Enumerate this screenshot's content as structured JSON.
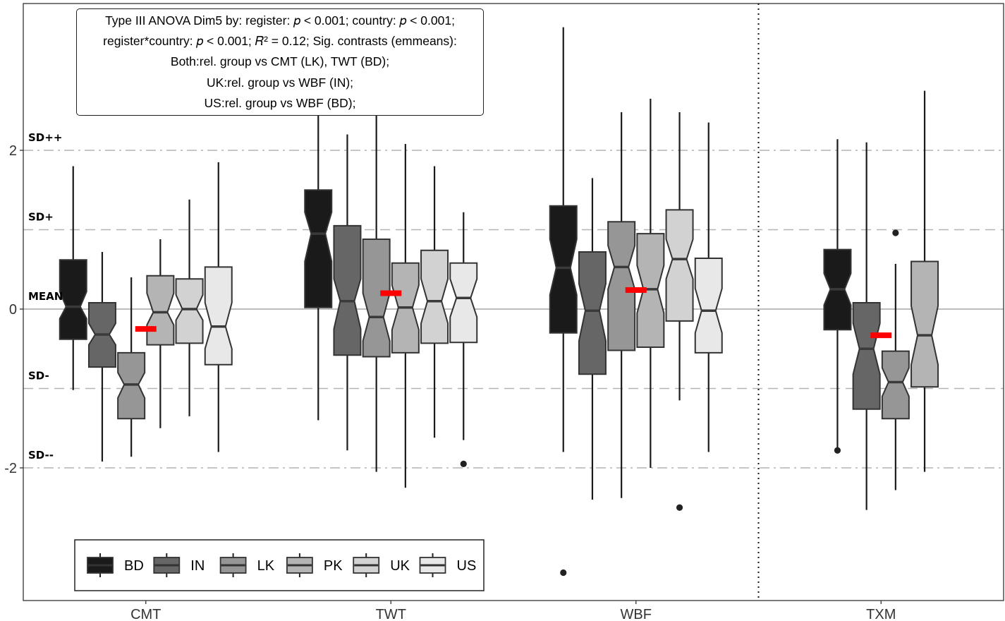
{
  "annotation": {
    "lines": [
      "Type III ANOVA Dim5 by: register: 𝑝 < 0.001; country: 𝑝 < 0.001;",
      "register*country: 𝑝 < 0.001; 𝑅² = 0.12; Sig. contrasts (emmeans):",
      "Both:rel. group vs CMT (LK), TWT (BD);",
      "UK:rel. group vs WBF (IN);",
      "US:rel. group vs WBF (BD);"
    ]
  },
  "chart_data": {
    "type": "boxplot",
    "notched": true,
    "categories": [
      "CMT",
      "TWT",
      "WBF",
      "TXM"
    ],
    "ylim": [
      -3.6,
      3.8
    ],
    "yticks": [
      -2,
      0,
      2
    ],
    "ytick_labels": [
      "-2",
      "0",
      "2"
    ],
    "reference_lines": [
      {
        "label": "SD++",
        "y": 2,
        "style": "dashdot"
      },
      {
        "label": "SD+",
        "y": 1,
        "style": "dashed"
      },
      {
        "label": "MEAN",
        "y": 0,
        "style": "solid"
      },
      {
        "label": "SD-",
        "y": -1,
        "style": "dashed"
      },
      {
        "label": "SD--",
        "y": -2,
        "style": "dashdot"
      }
    ],
    "separator_after_category": "WBF",
    "legend": {
      "position": "bottom-left"
    },
    "series": [
      {
        "name": "BD",
        "color": "#1a1a1a"
      },
      {
        "name": "IN",
        "color": "#666666"
      },
      {
        "name": "LK",
        "color": "#969696"
      },
      {
        "name": "PK",
        "color": "#b4b4b4"
      },
      {
        "name": "UK",
        "color": "#d2d2d2"
      },
      {
        "name": "US",
        "color": "#e8e8e8"
      }
    ],
    "groups": [
      {
        "category": "CMT",
        "mean": -0.25,
        "boxes": [
          {
            "series": "BD",
            "whisker_low": -1.02,
            "q1": -0.38,
            "median": 0.03,
            "q3": 0.62,
            "whisker_high": 1.8,
            "notch_low": -0.12,
            "notch_high": 0.22,
            "outliers": []
          },
          {
            "series": "IN",
            "whisker_low": -1.92,
            "q1": -0.73,
            "median": -0.32,
            "q3": 0.08,
            "whisker_high": 0.72,
            "notch_low": -0.45,
            "notch_high": -0.18,
            "outliers": []
          },
          {
            "series": "LK",
            "whisker_low": -1.86,
            "q1": -1.38,
            "median": -0.95,
            "q3": -0.55,
            "whisker_high": 0.4,
            "notch_low": -1.12,
            "notch_high": -0.8,
            "outliers": []
          },
          {
            "series": "PK",
            "whisker_low": -1.5,
            "q1": -0.45,
            "median": -0.04,
            "q3": 0.42,
            "whisker_high": 0.88,
            "notch_low": -0.2,
            "notch_high": 0.2,
            "outliers": []
          },
          {
            "series": "UK",
            "whisker_low": -1.35,
            "q1": -0.43,
            "median": 0.0,
            "q3": 0.38,
            "whisker_high": 1.38,
            "notch_low": -0.14,
            "notch_high": 0.18,
            "outliers": []
          },
          {
            "series": "US",
            "whisker_low": -1.8,
            "q1": -0.7,
            "median": -0.22,
            "q3": 0.53,
            "whisker_high": 1.85,
            "notch_low": -0.5,
            "notch_high": 0.08,
            "outliers": []
          }
        ]
      },
      {
        "category": "TWT",
        "mean": 0.2,
        "boxes": [
          {
            "series": "BD",
            "whisker_low": -1.4,
            "q1": 0.02,
            "median": 0.95,
            "q3": 1.5,
            "whisker_high": 2.45,
            "notch_low": 0.6,
            "notch_high": 1.22,
            "outliers": []
          },
          {
            "series": "IN",
            "whisker_low": -1.78,
            "q1": -0.58,
            "median": 0.1,
            "q3": 1.05,
            "whisker_high": 2.2,
            "notch_low": -0.25,
            "notch_high": 0.38,
            "outliers": []
          },
          {
            "series": "LK",
            "whisker_low": -2.05,
            "q1": -0.6,
            "median": -0.1,
            "q3": 0.88,
            "whisker_high": 2.45,
            "notch_low": -0.4,
            "notch_high": 0.2,
            "outliers": []
          },
          {
            "series": "PK",
            "whisker_low": -2.25,
            "q1": -0.55,
            "median": 0.02,
            "q3": 0.58,
            "whisker_high": 2.08,
            "notch_low": -0.26,
            "notch_high": 0.3,
            "outliers": []
          },
          {
            "series": "UK",
            "whisker_low": -1.62,
            "q1": -0.43,
            "median": 0.1,
            "q3": 0.74,
            "whisker_high": 1.8,
            "notch_low": -0.18,
            "notch_high": 0.38,
            "outliers": []
          },
          {
            "series": "US",
            "whisker_low": -1.65,
            "q1": -0.42,
            "median": 0.14,
            "q3": 0.58,
            "whisker_high": 1.22,
            "notch_low": -0.1,
            "notch_high": 0.38,
            "outliers": [
              -1.95
            ]
          }
        ]
      },
      {
        "category": "WBF",
        "mean": 0.24,
        "boxes": [
          {
            "series": "BD",
            "whisker_low": -1.8,
            "q1": -0.3,
            "median": 0.52,
            "q3": 1.3,
            "whisker_high": 3.55,
            "notch_low": 0.18,
            "notch_high": 0.88,
            "outliers": [
              -3.32
            ]
          },
          {
            "series": "IN",
            "whisker_low": -2.4,
            "q1": -0.82,
            "median": -0.02,
            "q3": 0.72,
            "whisker_high": 1.65,
            "notch_low": -0.4,
            "notch_high": 0.32,
            "outliers": []
          },
          {
            "series": "LK",
            "whisker_low": -2.38,
            "q1": -0.52,
            "median": 0.53,
            "q3": 1.1,
            "whisker_high": 2.48,
            "notch_low": 0.25,
            "notch_high": 0.8,
            "outliers": []
          },
          {
            "series": "PK",
            "whisker_low": -2.0,
            "q1": -0.48,
            "median": 0.25,
            "q3": 0.95,
            "whisker_high": 2.65,
            "notch_low": -0.05,
            "notch_high": 0.55,
            "outliers": []
          },
          {
            "series": "UK",
            "whisker_low": -1.15,
            "q1": -0.15,
            "median": 0.63,
            "q3": 1.25,
            "whisker_high": 2.48,
            "notch_low": 0.38,
            "notch_high": 0.88,
            "outliers": [
              -2.5
            ]
          },
          {
            "series": "US",
            "whisker_low": -1.8,
            "q1": -0.55,
            "median": -0.02,
            "q3": 0.64,
            "whisker_high": 2.35,
            "notch_low": -0.3,
            "notch_high": 0.26,
            "outliers": []
          }
        ]
      },
      {
        "category": "TXM",
        "mean": -0.33,
        "boxes": [
          {
            "series": "BD",
            "whisker_low": -1.78,
            "q1": -0.26,
            "median": 0.25,
            "q3": 0.75,
            "whisker_high": 2.14,
            "notch_low": 0.05,
            "notch_high": 0.45,
            "outliers": [
              -1.78
            ]
          },
          {
            "series": "IN",
            "whisker_low": -2.53,
            "q1": -1.26,
            "median": -0.5,
            "q3": 0.08,
            "whisker_high": 2.1,
            "notch_low": -0.82,
            "notch_high": -0.18,
            "outliers": []
          },
          {
            "series": "LK",
            "whisker_low": -2.28,
            "q1": -1.38,
            "median": -0.92,
            "q3": -0.53,
            "whisker_high": 0.57,
            "notch_low": -1.1,
            "notch_high": -0.74,
            "outliers": [
              0.96
            ]
          },
          {
            "series": "PK",
            "whisker_low": -2.05,
            "q1": -0.98,
            "median": -0.33,
            "q3": 0.6,
            "whisker_high": 2.75,
            "notch_low": -0.7,
            "notch_high": 0.04,
            "outliers": []
          }
        ]
      }
    ]
  }
}
